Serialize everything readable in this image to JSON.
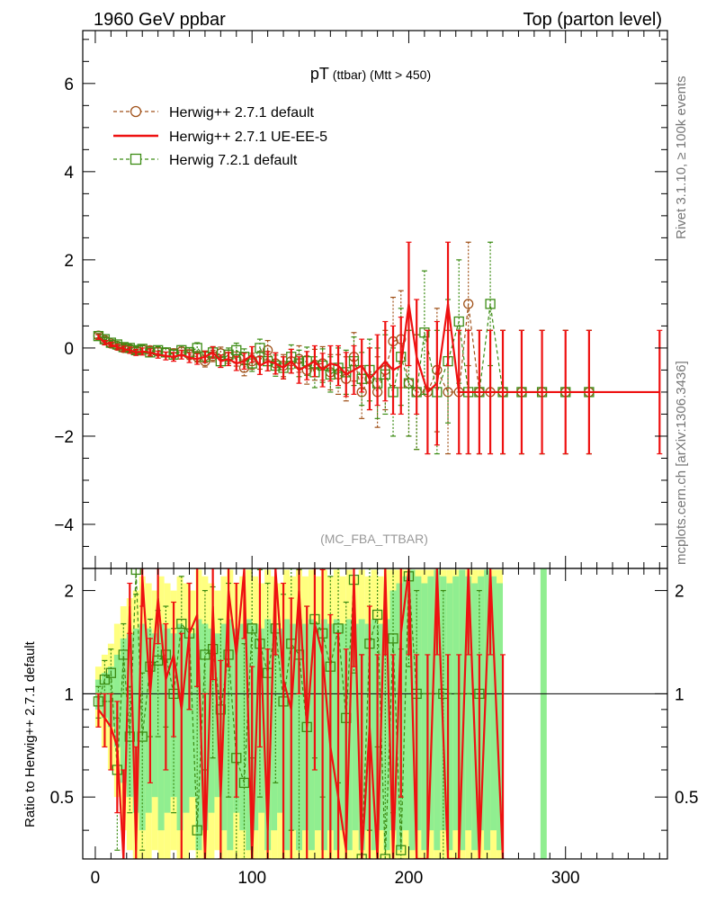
{
  "header": {
    "left": "1960 GeV ppbar",
    "right": "Top (parton level)"
  },
  "side_labels": {
    "top": "Rivet 3.1.10, ≥ 100k events",
    "bottom": "mcplots.cern.ch [arXiv:1306.3436]"
  },
  "analysis_tag": "(MC_FBA_TTBAR)",
  "plot_title": {
    "main": "pT",
    "sub1": " (ttbar)",
    "sub2": " (Mtt > 450)"
  },
  "ratio_ylabel": "Ratio to Herwig++ 2.7.1 default",
  "colors": {
    "herwig_271_default": "#a0521a",
    "herwig_271_ueee5": "#ee1111",
    "herwig_721_default": "#3c8c14",
    "band_green": "#90ee90",
    "band_yellow": "#ffff80"
  },
  "chart_data": {
    "type": "line",
    "xlim": [
      -8,
      365
    ],
    "ylim": [
      -5,
      7.2
    ],
    "ratio_ylim": [
      0.33,
      2.32
    ],
    "x_ticks": [
      "0",
      "100",
      "200",
      "300"
    ],
    "y_ticks": [
      "−4",
      "−2",
      "0",
      "2",
      "4",
      "6"
    ],
    "ratio_ticks": [
      "0.5",
      "1",
      "2"
    ],
    "legend_position": "top-left",
    "series": [
      {
        "name": "Herwig++ 2.7.1 default",
        "style": "dashed-circle",
        "x": [
          2,
          6,
          10,
          14,
          18,
          22,
          26,
          30,
          35,
          40,
          45,
          50,
          55,
          60,
          65,
          70,
          75,
          80,
          85,
          90,
          95,
          100,
          105,
          110,
          115,
          120,
          125,
          130,
          135,
          140,
          145,
          150,
          155,
          160,
          165,
          170,
          175,
          180,
          185,
          190,
          195,
          200,
          205,
          212,
          218,
          225,
          232,
          238,
          245,
          252,
          260,
          272,
          285,
          300,
          315
        ],
        "y": [
          0.28,
          0.18,
          0.1,
          0.05,
          0.0,
          -0.02,
          -0.06,
          -0.03,
          -0.05,
          -0.08,
          -0.1,
          -0.12,
          -0.08,
          -0.15,
          -0.2,
          -0.3,
          -0.18,
          -0.12,
          -0.2,
          -0.25,
          -0.45,
          -0.3,
          -0.28,
          -0.05,
          -0.35,
          -0.4,
          -0.3,
          -0.25,
          -0.5,
          -0.38,
          -0.35,
          -0.55,
          -0.6,
          -0.7,
          -0.2,
          -1.0,
          -0.7,
          -1.0,
          -0.5,
          0.15,
          0.2,
          -0.8,
          -1.0,
          -1.0,
          -0.5,
          -1.0,
          -1.0,
          1.0,
          -1.0,
          -1.0,
          -1.0,
          -1.0,
          -1.0,
          -1.0,
          -1.0
        ],
        "err": [
          0.05,
          0.05,
          0.05,
          0.06,
          0.06,
          0.07,
          0.07,
          0.08,
          0.08,
          0.08,
          0.09,
          0.1,
          0.1,
          0.11,
          0.12,
          0.13,
          0.13,
          0.14,
          0.15,
          0.16,
          0.18,
          0.18,
          0.2,
          0.22,
          0.24,
          0.25,
          0.27,
          0.3,
          0.32,
          0.35,
          0.38,
          0.4,
          0.45,
          0.5,
          0.55,
          0.6,
          0.7,
          0.8,
          0.9,
          1.0,
          1.1,
          1.2,
          1.3,
          1.4,
          1.4,
          1.4,
          1.4,
          1.4,
          1.4,
          1.4,
          1.4,
          1.4,
          1.4,
          1.4,
          1.4
        ]
      },
      {
        "name": "Herwig++ 2.7.1 UE-EE-5",
        "style": "solid",
        "x": [
          2,
          6,
          10,
          14,
          18,
          22,
          26,
          30,
          35,
          40,
          45,
          50,
          55,
          60,
          65,
          70,
          75,
          80,
          85,
          90,
          95,
          100,
          105,
          110,
          115,
          120,
          125,
          130,
          135,
          140,
          145,
          150,
          155,
          160,
          165,
          170,
          175,
          180,
          185,
          190,
          195,
          200,
          205,
          212,
          218,
          225,
          232,
          238,
          245,
          252,
          260,
          272,
          285,
          300,
          315,
          360
        ],
        "y": [
          0.25,
          0.12,
          0.08,
          0.02,
          -0.02,
          -0.05,
          -0.1,
          -0.08,
          -0.1,
          -0.15,
          -0.18,
          -0.2,
          -0.15,
          -0.22,
          -0.25,
          -0.2,
          -0.1,
          -0.3,
          -0.25,
          -0.35,
          -0.3,
          -0.15,
          -0.4,
          -0.3,
          -0.35,
          -0.45,
          -0.3,
          -0.5,
          -0.4,
          -0.3,
          -0.5,
          -0.35,
          -0.4,
          -0.6,
          -0.5,
          -0.4,
          -0.7,
          -0.5,
          -0.3,
          -0.5,
          -0.4,
          1.0,
          -0.2,
          -1.0,
          -0.8,
          1.0,
          -1.0,
          -1.0,
          -1.0,
          -1.0,
          -1.0,
          -1.0,
          -1.0,
          -1.0,
          -1.0,
          -1.0
        ],
        "err": [
          0.05,
          0.05,
          0.05,
          0.06,
          0.06,
          0.07,
          0.07,
          0.08,
          0.08,
          0.08,
          0.09,
          0.1,
          0.1,
          0.11,
          0.12,
          0.13,
          0.13,
          0.14,
          0.15,
          0.16,
          0.18,
          0.18,
          0.2,
          0.22,
          0.24,
          0.25,
          0.27,
          0.3,
          0.32,
          0.35,
          0.38,
          0.4,
          0.45,
          0.5,
          0.55,
          0.6,
          0.7,
          0.8,
          0.9,
          1.0,
          1.1,
          1.4,
          1.3,
          1.4,
          1.4,
          1.4,
          1.4,
          1.4,
          1.4,
          1.4,
          1.4,
          1.4,
          1.4,
          1.4,
          1.4,
          1.4
        ]
      },
      {
        "name": "Herwig 7.2.1 default",
        "style": "dashed-square",
        "x": [
          2,
          6,
          10,
          14,
          18,
          22,
          26,
          30,
          35,
          40,
          45,
          50,
          55,
          60,
          65,
          70,
          75,
          80,
          85,
          90,
          95,
          100,
          105,
          110,
          115,
          120,
          125,
          130,
          135,
          140,
          145,
          150,
          155,
          160,
          165,
          170,
          175,
          180,
          185,
          190,
          195,
          200,
          205,
          210,
          218,
          225,
          232,
          238,
          245,
          252,
          260,
          272,
          285,
          300,
          315
        ],
        "y": [
          0.27,
          0.2,
          0.12,
          0.08,
          0.02,
          0.0,
          -0.05,
          -0.02,
          -0.1,
          -0.05,
          -0.1,
          -0.15,
          -0.05,
          -0.1,
          0.0,
          -0.2,
          -0.1,
          -0.3,
          -0.15,
          -0.05,
          -0.2,
          -0.35,
          0.0,
          -0.3,
          -0.4,
          -0.45,
          -0.2,
          -0.35,
          -0.3,
          -0.55,
          -0.4,
          -0.6,
          -0.45,
          -0.55,
          -0.3,
          -0.7,
          -0.5,
          -0.8,
          -0.6,
          -1.0,
          -0.2,
          -0.8,
          -1.0,
          0.35,
          -1.0,
          -0.3,
          0.6,
          -1.0,
          -1.0,
          1.0,
          -1.0,
          -1.0,
          -1.0,
          -1.0,
          -1.0
        ],
        "err": [
          0.05,
          0.05,
          0.05,
          0.06,
          0.06,
          0.07,
          0.07,
          0.08,
          0.08,
          0.08,
          0.09,
          0.1,
          0.1,
          0.11,
          0.12,
          0.13,
          0.13,
          0.14,
          0.15,
          0.16,
          0.18,
          0.18,
          0.2,
          0.22,
          0.24,
          0.25,
          0.27,
          0.3,
          0.32,
          0.35,
          0.38,
          0.4,
          0.45,
          0.5,
          0.55,
          0.6,
          0.7,
          0.8,
          0.9,
          1.0,
          1.1,
          1.2,
          1.3,
          1.4,
          1.4,
          1.4,
          1.4,
          1.4,
          1.4,
          1.4,
          1.4,
          1.4,
          1.4,
          1.4,
          1.4
        ]
      }
    ],
    "ratio_series": [
      {
        "name": "Herwig++ 2.7.1 UE-EE-5",
        "x": [
          2,
          6,
          10,
          14,
          18,
          22,
          26,
          30,
          35,
          40,
          45,
          50,
          55,
          60,
          65,
          70,
          75,
          80,
          85,
          90,
          95,
          100,
          105,
          110,
          115,
          120,
          125,
          130,
          135,
          140,
          145,
          150,
          155,
          160,
          165,
          170,
          175,
          180,
          185,
          190,
          195,
          200,
          205,
          212,
          218,
          225,
          232,
          238,
          245,
          252,
          260
        ],
        "y": [
          0.9,
          0.85,
          0.8,
          0.7,
          0.3,
          1.8,
          0.35,
          2.2,
          1.0,
          1.9,
          1.1,
          1.3,
          0.9,
          1.5,
          1.7,
          0.3,
          1.8,
          0.5,
          2.0,
          1.3,
          2.3,
          0.3,
          1.6,
          0.4,
          2.3,
          1.1,
          0.9,
          2.0,
          0.8,
          1.6,
          1.3,
          0.7,
          0.5,
          0.35,
          2.2,
          0.3,
          0.8,
          0.3,
          2.3,
          0.3,
          1.5,
          2.3,
          0.3,
          0.3,
          2.3,
          0.3,
          0.3,
          2.3,
          0.3,
          2.3,
          0.3
        ],
        "err": [
          0.1,
          0.15,
          0.2,
          0.25,
          0.3,
          0.3,
          0.35,
          0.4,
          0.45,
          0.5,
          0.5,
          0.55,
          0.6,
          0.6,
          0.65,
          0.7,
          0.7,
          0.75,
          0.8,
          0.8,
          0.85,
          0.9,
          0.9,
          0.95,
          1.0,
          1.0,
          1.0,
          1.0,
          1.0,
          1.0,
          1.0,
          1.0,
          1.0,
          1.0,
          1.0,
          1.0,
          1.0,
          1.0,
          1.0,
          1.0,
          1.0,
          1.0,
          1.0,
          1.0,
          1.0,
          1.0,
          1.0,
          1.0,
          1.0,
          1.0,
          1.0
        ]
      },
      {
        "name": "Herwig 7.2.1 default",
        "x": [
          2,
          6,
          10,
          14,
          18,
          22,
          26,
          30,
          35,
          40,
          45,
          50,
          55,
          60,
          65,
          70,
          75,
          80,
          85,
          90,
          95,
          100,
          105,
          110,
          115,
          120,
          125,
          130,
          135,
          140,
          145,
          150,
          155,
          160,
          165,
          170,
          175,
          180,
          185,
          190,
          195,
          200,
          205,
          222,
          245
        ],
        "y": [
          0.95,
          1.1,
          1.15,
          0.6,
          1.3,
          0.75,
          2.3,
          0.75,
          1.2,
          1.25,
          1.3,
          1.0,
          1.6,
          1.5,
          0.4,
          1.3,
          1.35,
          0.9,
          1.3,
          0.65,
          0.55,
          1.55,
          1.4,
          1.15,
          1.55,
          0.95,
          1.4,
          1.3,
          0.8,
          1.65,
          1.5,
          1.2,
          1.55,
          0.85,
          2.15,
          0.3,
          1.4,
          1.7,
          0.3,
          1.45,
          0.35,
          2.2,
          1.0,
          1.0,
          1.0
        ],
        "err": [
          0.1,
          0.15,
          0.2,
          0.25,
          0.3,
          0.3,
          0.35,
          0.4,
          0.45,
          0.5,
          0.5,
          0.55,
          0.6,
          0.6,
          0.65,
          0.7,
          0.7,
          0.75,
          0.8,
          0.8,
          0.85,
          0.9,
          0.9,
          0.95,
          1.0,
          1.0,
          1.0,
          1.0,
          1.0,
          1.0,
          1.0,
          1.0,
          1.0,
          1.0,
          1.0,
          1.0,
          1.0,
          1.0,
          1.0,
          1.0,
          1.0,
          1.0,
          1.0,
          1.0,
          1.0
        ]
      }
    ],
    "uncertainty_band": {
      "x_edges": [
        0,
        4,
        8,
        12,
        16,
        20,
        24,
        28,
        32,
        36,
        40,
        44,
        48,
        52,
        56,
        60,
        64,
        68,
        72,
        76,
        80,
        84,
        88,
        92,
        96,
        100,
        104,
        108,
        112,
        116,
        120,
        124,
        128,
        132,
        136,
        140,
        144,
        148,
        152,
        156,
        160,
        164,
        168,
        172,
        176,
        180,
        184,
        188,
        192,
        196,
        200,
        204,
        208,
        212,
        216,
        220,
        224,
        228,
        232,
        236,
        240,
        244,
        248,
        252,
        256,
        260
      ],
      "green_lo": [
        0.9,
        0.85,
        0.8,
        0.7,
        0.55,
        0.5,
        0.45,
        0.4,
        0.45,
        0.5,
        0.4,
        0.45,
        0.5,
        0.4,
        0.45,
        0.5,
        0.35,
        0.4,
        0.45,
        0.5,
        0.4,
        0.35,
        0.45,
        0.4,
        0.35,
        0.4,
        0.45,
        0.35,
        0.4,
        0.45,
        0.35,
        0.4,
        0.35,
        0.4,
        0.35,
        0.4,
        0.35,
        0.4,
        0.35,
        0.4,
        0.35,
        0.4,
        0.35,
        0.4,
        0.35,
        0.4,
        0.35,
        0.4,
        0.35,
        0.4,
        0.35,
        0.4,
        0.35,
        0.4,
        0.35,
        0.4,
        0.35,
        0.4,
        0.35,
        0.4,
        0.35,
        0.4,
        0.35,
        0.4,
        0.35
      ],
      "green_hi": [
        1.1,
        1.15,
        1.2,
        1.3,
        1.45,
        1.5,
        1.55,
        1.6,
        1.55,
        1.5,
        1.6,
        1.55,
        1.5,
        1.6,
        1.55,
        1.5,
        1.65,
        1.6,
        1.55,
        1.5,
        1.6,
        1.65,
        1.55,
        1.6,
        1.65,
        1.6,
        1.55,
        1.65,
        1.6,
        1.55,
        1.65,
        1.6,
        1.65,
        1.6,
        1.65,
        1.6,
        1.65,
        1.6,
        1.65,
        1.6,
        1.65,
        1.6,
        1.65,
        1.6,
        1.65,
        1.6,
        1.65,
        2.0,
        2.1,
        2.2,
        2.3,
        2.2,
        2.1,
        2.2,
        2.3,
        2.2,
        2.1,
        2.2,
        2.3,
        2.2,
        2.1,
        2.2,
        2.3,
        2.2,
        2.1
      ],
      "yellow_lo": [
        0.8,
        0.7,
        0.6,
        0.5,
        0.4,
        0.35,
        0.33,
        0.33,
        0.33,
        0.35,
        0.33,
        0.33,
        0.35,
        0.33,
        0.33,
        0.35,
        0.33,
        0.33,
        0.33,
        0.35,
        0.33,
        0.33,
        0.33,
        0.33,
        0.33,
        0.33,
        0.33,
        0.33,
        0.33,
        0.33,
        0.33,
        0.33,
        0.33,
        0.33,
        0.33,
        0.33,
        0.33,
        0.33,
        0.33,
        0.33,
        0.33,
        0.33,
        0.33,
        0.33,
        0.33,
        0.33,
        0.33,
        0.33,
        0.33,
        0.33,
        0.33,
        0.33,
        0.33,
        0.33,
        0.33,
        0.33,
        0.33,
        0.33,
        0.33,
        0.33,
        0.33,
        0.33,
        0.33,
        0.33,
        0.33
      ],
      "yellow_hi": [
        1.2,
        1.3,
        1.4,
        1.6,
        1.8,
        1.9,
        2.0,
        2.2,
        2.1,
        2.0,
        2.2,
        2.1,
        2.0,
        2.2,
        2.1,
        2.0,
        2.3,
        2.2,
        2.1,
        2.0,
        2.2,
        2.3,
        2.1,
        2.2,
        2.3,
        2.2,
        2.1,
        2.3,
        2.2,
        2.1,
        2.3,
        2.2,
        2.3,
        2.2,
        2.3,
        2.2,
        2.3,
        2.2,
        2.3,
        2.2,
        2.3,
        2.2,
        2.3,
        2.2,
        2.3,
        2.2,
        2.3,
        2.3,
        2.3,
        2.3,
        2.3,
        2.3,
        2.3,
        2.3,
        2.3,
        2.3,
        2.3,
        2.3,
        2.3,
        2.3,
        2.3,
        2.3,
        2.3,
        2.3,
        2.3
      ],
      "extra_green_bin": [
        284,
        288
      ]
    }
  }
}
